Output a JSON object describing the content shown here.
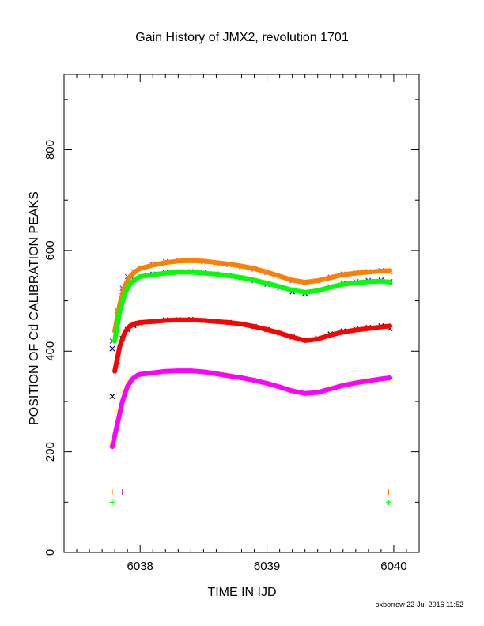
{
  "chart_data": {
    "type": "scatter",
    "title": "Gain History of JMX2, revolution 1701",
    "xlabel": "TIME IN IJD",
    "ylabel": "POSITION OF Cd CALIBRATION PEAKS",
    "xlim": [
      6037.4,
      6040.2
    ],
    "ylim": [
      0,
      950
    ],
    "x_ticks": [
      6038,
      6039,
      6040
    ],
    "y_ticks": [
      0,
      200,
      400,
      600,
      800
    ],
    "grid": false,
    "credit": "oxborrow 22-Jul-2016 11:52",
    "series": [
      {
        "color": "#8a2be2",
        "marker": "x",
        "x": [
          6037.78,
          6037.82,
          6037.86,
          6037.9,
          6037.95,
          6038.0,
          6038.1,
          6038.2,
          6038.3,
          6038.4,
          6038.5,
          6038.6,
          6038.7,
          6038.8,
          6038.9,
          6039.0,
          6039.1,
          6039.2,
          6039.3,
          6039.4,
          6039.5,
          6039.6,
          6039.7,
          6039.8,
          6039.9,
          6039.97
        ],
        "y": [
          420,
          480,
          525,
          548,
          558,
          565,
          572,
          578,
          580,
          580,
          578,
          575,
          572,
          568,
          563,
          556,
          548,
          540,
          536,
          540,
          547,
          553,
          556,
          558,
          560,
          558
        ]
      },
      {
        "color": "#0000ff",
        "marker": "x",
        "x": [
          6037.78,
          6037.82,
          6037.86,
          6037.9,
          6037.95,
          6038.0,
          6038.1,
          6038.2,
          6038.3,
          6038.4,
          6038.5,
          6038.6,
          6038.7,
          6038.8,
          6038.9,
          6039.0,
          6039.1,
          6039.2,
          6039.3,
          6039.4,
          6039.5,
          6039.6,
          6039.7,
          6039.8,
          6039.9,
          6039.97
        ],
        "y": [
          405,
          460,
          510,
          532,
          542,
          548,
          553,
          556,
          558,
          558,
          556,
          553,
          550,
          546,
          540,
          533,
          526,
          518,
          515,
          520,
          528,
          535,
          538,
          540,
          541,
          538
        ]
      },
      {
        "color": "#ff7f00",
        "marker": "curve",
        "x": [
          6037.8,
          6037.84,
          6037.88,
          6037.92,
          6037.96,
          6038.0,
          6038.1,
          6038.2,
          6038.3,
          6038.4,
          6038.5,
          6038.6,
          6038.7,
          6038.8,
          6038.9,
          6039.0,
          6039.1,
          6039.2,
          6039.3,
          6039.4,
          6039.5,
          6039.6,
          6039.7,
          6039.8,
          6039.9,
          6039.97
        ],
        "y": [
          440,
          495,
          530,
          548,
          558,
          564,
          571,
          576,
          579,
          580,
          579,
          576,
          573,
          569,
          564,
          557,
          549,
          541,
          537,
          540,
          546,
          552,
          555,
          557,
          559,
          560
        ]
      },
      {
        "color": "#00ff00",
        "marker": "curve",
        "x": [
          6037.8,
          6037.84,
          6037.88,
          6037.92,
          6037.96,
          6038.0,
          6038.1,
          6038.2,
          6038.3,
          6038.4,
          6038.5,
          6038.6,
          6038.7,
          6038.8,
          6038.9,
          6039.0,
          6039.1,
          6039.2,
          6039.3,
          6039.4,
          6039.5,
          6039.6,
          6039.7,
          6039.8,
          6039.9,
          6039.97
        ],
        "y": [
          420,
          480,
          515,
          533,
          543,
          548,
          552,
          555,
          557,
          557,
          555,
          553,
          550,
          546,
          541,
          535,
          528,
          521,
          517,
          520,
          527,
          533,
          536,
          538,
          539,
          537
        ]
      },
      {
        "color": "#000000",
        "marker": "x",
        "x": [
          6037.78,
          6037.82,
          6037.86,
          6037.9,
          6037.95,
          6038.0,
          6038.1,
          6038.2,
          6038.3,
          6038.4,
          6038.5,
          6038.6,
          6038.7,
          6038.8,
          6038.9,
          6039.0,
          6039.1,
          6039.2,
          6039.3,
          6039.4,
          6039.5,
          6039.6,
          6039.7,
          6039.8,
          6039.9,
          6039.97
        ],
        "y": [
          310,
          380,
          425,
          443,
          451,
          455,
          459,
          462,
          463,
          463,
          461,
          459,
          457,
          454,
          449,
          443,
          436,
          428,
          422,
          426,
          434,
          440,
          444,
          447,
          450,
          445
        ]
      },
      {
        "color": "#ff0000",
        "marker": "curve",
        "x": [
          6037.8,
          6037.84,
          6037.88,
          6037.92,
          6037.96,
          6038.0,
          6038.1,
          6038.2,
          6038.3,
          6038.4,
          6038.5,
          6038.6,
          6038.7,
          6038.8,
          6038.9,
          6039.0,
          6039.1,
          6039.2,
          6039.3,
          6039.4,
          6039.5,
          6039.6,
          6039.7,
          6039.8,
          6039.9,
          6039.97
        ],
        "y": [
          360,
          410,
          438,
          450,
          455,
          457,
          459,
          461,
          462,
          462,
          461,
          459,
          457,
          454,
          449,
          443,
          436,
          428,
          421,
          424,
          432,
          438,
          442,
          445,
          448,
          450
        ]
      },
      {
        "color": "#ffff00",
        "marker": "x",
        "x": [
          6037.78,
          6037.82,
          6037.86,
          6037.9,
          6037.95,
          6038.0,
          6038.1,
          6038.2,
          6038.3,
          6038.4,
          6038.5,
          6038.6,
          6038.7,
          6038.8,
          6038.9,
          6039.0,
          6039.1,
          6039.2,
          6039.3,
          6039.4,
          6039.5,
          6039.6,
          6039.7,
          6039.8,
          6039.9,
          6039.97
        ],
        "y": [
          215,
          280,
          320,
          340,
          348,
          352,
          356,
          359,
          361,
          361,
          359,
          356,
          353,
          349,
          344,
          337,
          330,
          322,
          317,
          320,
          327,
          334,
          339,
          342,
          345,
          342
        ]
      },
      {
        "color": "#ff00ff",
        "marker": "curve",
        "x": [
          6037.78,
          6037.82,
          6037.86,
          6037.9,
          6037.94,
          6037.98,
          6038.0,
          6038.1,
          6038.2,
          6038.3,
          6038.4,
          6038.5,
          6038.6,
          6038.7,
          6038.8,
          6038.9,
          6039.0,
          6039.1,
          6039.2,
          6039.3,
          6039.4,
          6039.5,
          6039.6,
          6039.7,
          6039.8,
          6039.9,
          6039.97
        ],
        "y": [
          210,
          255,
          300,
          330,
          345,
          352,
          354,
          357,
          360,
          361,
          361,
          359,
          355,
          351,
          347,
          342,
          336,
          329,
          321,
          316,
          318,
          325,
          332,
          337,
          341,
          345,
          347
        ]
      }
    ],
    "markers": [
      {
        "color": "#ff7f00",
        "x": 6037.78,
        "y": 120
      },
      {
        "color": "#00ff00",
        "x": 6037.78,
        "y": 100
      },
      {
        "color": "#8a2be2",
        "x": 6037.86,
        "y": 120
      },
      {
        "color": "#ff7f00",
        "x": 6039.96,
        "y": 120
      },
      {
        "color": "#00ff00",
        "x": 6039.96,
        "y": 100
      }
    ]
  }
}
